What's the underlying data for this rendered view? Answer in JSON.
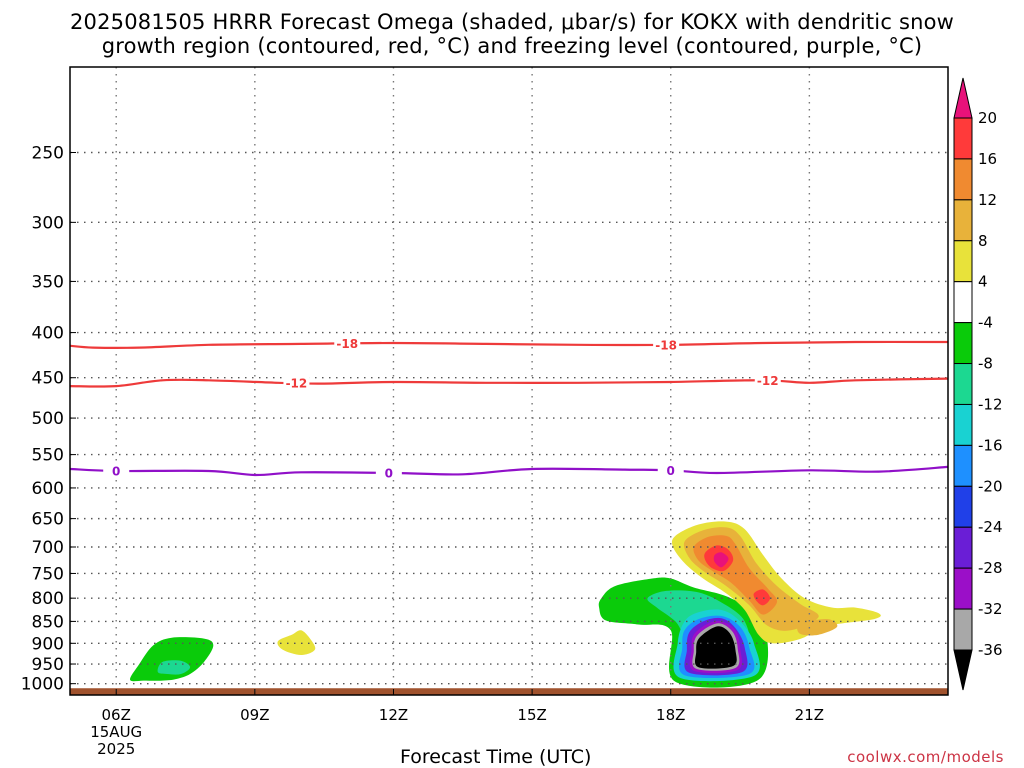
{
  "title": {
    "line1": "2025081505 HRRR Forecast Omega (shaded, μbar/s) for KOKX with dendritic snow",
    "line2": "growth region (contoured, red, °C) and freezing level (contoured, purple, °C)"
  },
  "footer": {
    "xlabel": "Forecast Time (UTC)",
    "credit": "coolwx.com/models"
  },
  "chart_data": {
    "type": "heatmap",
    "title": "2025081505 HRRR Forecast Omega (shaded, μbar/s) for KOKX with dendritic snow growth region (contoured, red, °C) and freezing level (contoured, purple, °C)",
    "xlabel": "Forecast Time (UTC)",
    "ylabel": "",
    "x_unit": "hour UTC",
    "xlim": [
      5,
      24
    ],
    "ylim_hpa": [
      200,
      1030
    ],
    "y_scale": "log (pressure)",
    "grid": true,
    "x_ticks": [
      {
        "value": 6,
        "label": "06Z",
        "sub": [
          "15AUG",
          "2025"
        ]
      },
      {
        "value": 9,
        "label": "09Z"
      },
      {
        "value": 12,
        "label": "12Z"
      },
      {
        "value": 15,
        "label": "15Z"
      },
      {
        "value": 18,
        "label": "18Z"
      },
      {
        "value": 21,
        "label": "21Z"
      }
    ],
    "y_ticks": [
      250,
      300,
      350,
      400,
      450,
      500,
      550,
      600,
      650,
      700,
      750,
      800,
      850,
      900,
      950,
      1000
    ],
    "ground_hpa": 1012,
    "colorbar": {
      "labels": [
        "20",
        "16",
        "12",
        "8",
        "4",
        "-4",
        "-8",
        "-12",
        "-16",
        "-20",
        "-24",
        "-28",
        "-32",
        "-36"
      ],
      "levels": [
        -36,
        -32,
        -28,
        -24,
        -20,
        -16,
        -12,
        -8,
        -4,
        4,
        8,
        12,
        16,
        20
      ],
      "colors": [
        "#000000",
        "#a8a8a8",
        "#9b0fc8",
        "#6a1ed6",
        "#2040e8",
        "#1e90ff",
        "#19d2d2",
        "#1cd891",
        "#0acb0a",
        "#ffffff",
        "#e8e23a",
        "#e8b23a",
        "#f08a30",
        "#ff3a3a",
        "#e8127a"
      ]
    },
    "series": [
      {
        "name": "-18",
        "color": "#ee3a3a",
        "points": [
          [
            5,
            414
          ],
          [
            5.5,
            416
          ],
          [
            6.5,
            416
          ],
          [
            8,
            413
          ],
          [
            10,
            412
          ],
          [
            12,
            411
          ],
          [
            14,
            412
          ],
          [
            16,
            413
          ],
          [
            18,
            413
          ],
          [
            20,
            411
          ],
          [
            22,
            410
          ],
          [
            24,
            410
          ]
        ],
        "labels_at": [
          11,
          17.9
        ]
      },
      {
        "name": "-12",
        "color": "#ee3a3a",
        "points": [
          [
            5,
            460
          ],
          [
            6,
            460
          ],
          [
            7,
            453
          ],
          [
            8,
            453
          ],
          [
            9.5,
            456
          ],
          [
            10.5,
            457
          ],
          [
            12,
            455
          ],
          [
            14,
            456
          ],
          [
            16,
            456
          ],
          [
            18,
            455
          ],
          [
            20,
            453
          ],
          [
            21,
            456
          ],
          [
            22,
            453
          ],
          [
            24,
            451
          ]
        ],
        "labels_at": [
          9.9,
          20.1
        ]
      },
      {
        "name": "0",
        "color": "#9010c8",
        "points": [
          [
            5,
            571
          ],
          [
            6,
            574
          ],
          [
            8,
            574
          ],
          [
            9,
            580
          ],
          [
            10,
            576
          ],
          [
            12,
            577
          ],
          [
            13.5,
            579
          ],
          [
            15,
            571
          ],
          [
            17,
            572
          ],
          [
            18,
            573
          ],
          [
            19,
            577
          ],
          [
            21,
            573
          ],
          [
            22.5,
            575
          ],
          [
            24,
            568
          ]
        ],
        "labels_at": [
          6.0,
          11.9,
          18.0
        ]
      }
    ],
    "shaded_regions": [
      {
        "level": -8,
        "color": "#0acb0a",
        "points": [
          [
            6.3,
            990
          ],
          [
            6.5,
            950
          ],
          [
            6.8,
            905
          ],
          [
            7.2,
            887
          ],
          [
            7.9,
            889
          ],
          [
            8.1,
            905
          ],
          [
            7.9,
            945
          ],
          [
            7.6,
            975
          ],
          [
            7.3,
            988
          ],
          [
            7.0,
            992
          ],
          [
            6.6,
            992
          ]
        ]
      },
      {
        "level": -8,
        "color": "#1cd891",
        "points": [
          [
            6.9,
            970
          ],
          [
            7.0,
            945
          ],
          [
            7.4,
            942
          ],
          [
            7.6,
            958
          ],
          [
            7.4,
            975
          ],
          [
            7.1,
            975
          ]
        ]
      },
      {
        "level": 4,
        "color": "#e8e23a",
        "points": [
          [
            9.5,
            895
          ],
          [
            9.8,
            880
          ],
          [
            10.0,
            870
          ],
          [
            10.2,
            890
          ],
          [
            10.3,
            915
          ],
          [
            10.0,
            928
          ],
          [
            9.6,
            915
          ]
        ]
      },
      {
        "level": -8,
        "color": "#0acb0a",
        "points": [
          [
            16.5,
            800
          ],
          [
            16.8,
            775
          ],
          [
            17.6,
            760
          ],
          [
            18.0,
            760
          ],
          [
            18.5,
            778
          ],
          [
            19.3,
            800
          ],
          [
            20.0,
            850
          ],
          [
            19.9,
            990
          ],
          [
            18.1,
            995
          ],
          [
            18.0,
            870
          ],
          [
            17.3,
            857
          ],
          [
            16.6,
            848
          ],
          [
            16.45,
            820
          ]
        ]
      },
      {
        "level": -8,
        "color": "#1cd891",
        "points": [
          [
            17.5,
            800
          ],
          [
            17.9,
            785
          ],
          [
            18.6,
            788
          ],
          [
            19.2,
            815
          ],
          [
            19.6,
            850
          ],
          [
            19.6,
            900
          ],
          [
            18.5,
            900
          ],
          [
            18.1,
            850
          ],
          [
            17.7,
            820
          ]
        ]
      },
      {
        "level": -12,
        "color": "#19d2d2",
        "points": [
          [
            18.3,
            850
          ],
          [
            18.6,
            830
          ],
          [
            19.1,
            825
          ],
          [
            19.5,
            850
          ],
          [
            19.8,
            900
          ],
          [
            19.8,
            980
          ],
          [
            18.2,
            985
          ],
          [
            18.15,
            900
          ]
        ]
      },
      {
        "level": -16,
        "color": "#1e90ff",
        "points": [
          [
            18.3,
            870
          ],
          [
            18.6,
            845
          ],
          [
            19.1,
            838
          ],
          [
            19.5,
            862
          ],
          [
            19.7,
            910
          ],
          [
            19.7,
            975
          ],
          [
            18.3,
            978
          ],
          [
            18.25,
            910
          ]
        ]
      },
      {
        "level": -24,
        "color": "#6a1ed6",
        "points": [
          [
            18.4,
            875
          ],
          [
            18.7,
            850
          ],
          [
            19.1,
            843
          ],
          [
            19.4,
            865
          ],
          [
            19.6,
            910
          ],
          [
            19.55,
            970
          ],
          [
            18.4,
            972
          ],
          [
            18.35,
            915
          ]
        ]
      },
      {
        "level": -28,
        "color": "#9b0fc8",
        "points": [
          [
            18.5,
            880
          ],
          [
            18.8,
            855
          ],
          [
            19.1,
            850
          ],
          [
            19.4,
            870
          ],
          [
            19.5,
            910
          ],
          [
            19.45,
            965
          ],
          [
            18.5,
            967
          ],
          [
            18.45,
            915
          ]
        ]
      },
      {
        "level": -32,
        "color": "#a8a8a8",
        "points": [
          [
            18.55,
            885
          ],
          [
            18.85,
            860
          ],
          [
            19.1,
            855
          ],
          [
            19.35,
            875
          ],
          [
            19.45,
            912
          ],
          [
            19.4,
            960
          ],
          [
            18.55,
            962
          ],
          [
            18.5,
            918
          ]
        ]
      },
      {
        "level": -36,
        "color": "#000000",
        "points": [
          [
            18.6,
            890
          ],
          [
            18.9,
            865
          ],
          [
            19.1,
            862
          ],
          [
            19.3,
            880
          ],
          [
            19.4,
            915
          ],
          [
            19.35,
            955
          ],
          [
            18.6,
            958
          ],
          [
            18.55,
            920
          ]
        ]
      },
      {
        "level": 4,
        "color": "#e8e23a",
        "points": [
          [
            18.1,
            680
          ],
          [
            18.6,
            660
          ],
          [
            19.2,
            655
          ],
          [
            19.6,
            668
          ],
          [
            20.0,
            715
          ],
          [
            20.4,
            760
          ],
          [
            20.9,
            800
          ],
          [
            21.5,
            820
          ],
          [
            22.0,
            820
          ],
          [
            22.5,
            832
          ],
          [
            22.4,
            845
          ],
          [
            21.4,
            860
          ],
          [
            20.8,
            890
          ],
          [
            20.2,
            900
          ],
          [
            19.9,
            880
          ],
          [
            19.6,
            825
          ],
          [
            19.2,
            790
          ],
          [
            18.7,
            760
          ],
          [
            18.3,
            730
          ],
          [
            18.05,
            700
          ]
        ]
      },
      {
        "level": 8,
        "color": "#e8b23a",
        "points": [
          [
            18.3,
            690
          ],
          [
            18.7,
            670
          ],
          [
            19.2,
            665
          ],
          [
            19.5,
            680
          ],
          [
            19.85,
            730
          ],
          [
            20.3,
            775
          ],
          [
            20.8,
            812
          ],
          [
            21.2,
            840
          ],
          [
            20.6,
            870
          ],
          [
            20.1,
            860
          ],
          [
            19.7,
            815
          ],
          [
            19.2,
            775
          ],
          [
            18.7,
            745
          ],
          [
            18.4,
            720
          ]
        ]
      },
      {
        "level": 12,
        "color": "#f08a30",
        "points": [
          [
            18.5,
            700
          ],
          [
            18.8,
            682
          ],
          [
            19.2,
            680
          ],
          [
            19.4,
            695
          ],
          [
            19.7,
            740
          ],
          [
            20.1,
            780
          ],
          [
            20.3,
            808
          ],
          [
            20.0,
            835
          ],
          [
            19.7,
            805
          ],
          [
            19.3,
            768
          ],
          [
            18.9,
            745
          ],
          [
            18.6,
            725
          ]
        ]
      },
      {
        "level": 16,
        "color": "#ff3a3a",
        "points": [
          [
            18.75,
            710
          ],
          [
            19.0,
            697
          ],
          [
            19.25,
            705
          ],
          [
            19.35,
            725
          ],
          [
            19.15,
            745
          ],
          [
            18.9,
            740
          ],
          [
            18.75,
            725
          ]
        ]
      },
      {
        "level": 20,
        "color": "#e8127a",
        "points": [
          [
            18.95,
            715
          ],
          [
            19.1,
            710
          ],
          [
            19.25,
            722
          ],
          [
            19.1,
            738
          ],
          [
            18.95,
            728
          ]
        ]
      },
      {
        "level": 16,
        "color": "#ff3a3a",
        "points": [
          [
            19.8,
            790
          ],
          [
            20.0,
            782
          ],
          [
            20.15,
            800
          ],
          [
            20.0,
            815
          ],
          [
            19.85,
            805
          ]
        ]
      },
      {
        "level": 8,
        "color": "#e8b23a",
        "points": [
          [
            20.8,
            855
          ],
          [
            21.4,
            845
          ],
          [
            21.6,
            862
          ],
          [
            21.2,
            880
          ],
          [
            20.8,
            878
          ]
        ]
      }
    ]
  }
}
